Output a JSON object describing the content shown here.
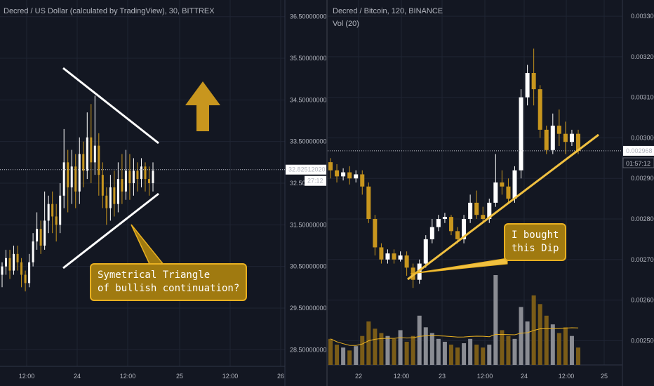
{
  "chart_data": [
    {
      "type": "candlestick",
      "title": "Decred / US Dollar (calculated by TradingView), 30, BITTREX",
      "x_ticks": [
        "12:00",
        "24",
        "12:00",
        "25",
        "12:00",
        "26"
      ],
      "y_ticks": [
        "36.50000000",
        "35.50000000",
        "34.50000000",
        "33.50000000",
        "32.50000000",
        "31.50000000",
        "30.50000000",
        "29.50000000",
        "28.50000000"
      ],
      "ylim": [
        28.1,
        36.9
      ],
      "last_price": "32.82512020",
      "countdown": "27:12",
      "grid": true,
      "candles": [
        [
          30.3,
          30.5,
          30.0,
          30.6
        ],
        [
          30.5,
          30.7,
          30.3,
          30.9
        ],
        [
          30.7,
          30.4,
          30.2,
          30.9
        ],
        [
          30.4,
          30.8,
          30.3,
          31.0
        ],
        [
          30.8,
          30.6,
          30.4,
          31.0
        ],
        [
          30.6,
          30.3,
          30.0,
          30.7
        ],
        [
          30.3,
          30.1,
          29.9,
          30.4
        ],
        [
          30.1,
          30.6,
          30.0,
          30.8
        ],
        [
          30.6,
          31.1,
          30.5,
          31.3
        ],
        [
          31.1,
          31.4,
          30.9,
          31.8
        ],
        [
          31.4,
          31.0,
          30.8,
          31.6
        ],
        [
          31.0,
          31.6,
          30.9,
          32.3
        ],
        [
          31.6,
          32.0,
          31.3,
          32.2
        ],
        [
          32.0,
          31.7,
          31.3,
          32.3
        ],
        [
          31.7,
          31.5,
          31.1,
          32.0
        ],
        [
          31.5,
          32.2,
          31.3,
          32.5
        ],
        [
          32.2,
          33.0,
          31.9,
          33.8
        ],
        [
          33.0,
          32.4,
          31.8,
          33.3
        ],
        [
          32.4,
          32.9,
          32.0,
          33.3
        ],
        [
          32.9,
          32.3,
          31.9,
          33.2
        ],
        [
          32.3,
          33.2,
          32.0,
          33.6
        ],
        [
          33.2,
          32.8,
          32.4,
          33.5
        ],
        [
          32.8,
          33.6,
          32.6,
          34.2
        ],
        [
          33.6,
          33.0,
          32.5,
          34.4
        ],
        [
          33.0,
          33.4,
          32.7,
          34.6
        ],
        [
          33.4,
          32.7,
          32.2,
          33.7
        ],
        [
          32.7,
          32.2,
          31.9,
          33.0
        ],
        [
          32.2,
          31.9,
          31.5,
          32.4
        ],
        [
          31.9,
          32.4,
          31.6,
          32.7
        ],
        [
          32.4,
          32.0,
          31.7,
          32.8
        ],
        [
          32.0,
          32.6,
          31.8,
          33.0
        ],
        [
          32.6,
          32.3,
          32.0,
          33.2
        ],
        [
          32.3,
          32.8,
          32.1,
          33.3
        ],
        [
          32.8,
          32.5,
          32.1,
          33.2
        ],
        [
          32.5,
          32.8,
          32.2,
          33.1
        ],
        [
          32.8,
          32.6,
          32.3,
          33.0
        ],
        [
          32.6,
          32.9,
          32.4,
          33.1
        ],
        [
          32.9,
          32.6,
          32.3,
          33.0
        ],
        [
          32.6,
          32.5,
          32.2,
          32.9
        ],
        [
          32.5,
          32.8,
          32.3,
          33.0
        ]
      ],
      "annotation": "Symetrical Triangle\nof bullish continuation?"
    },
    {
      "type": "candlestick",
      "title": "Decred / Bitcoin, 120, BINANCE",
      "subtitle": "Vol (20)",
      "x_ticks": [
        "22",
        "12:00",
        "23",
        "12:00",
        "24",
        "12:00",
        "25"
      ],
      "y_ticks": [
        "0.003300",
        "0.003200",
        "0.003100",
        "0.003000",
        "0.002900",
        "0.002800",
        "0.002700",
        "0.002600",
        "0.002500"
      ],
      "ylim": [
        0.00244,
        0.00334
      ],
      "last_price": "0.002968",
      "countdown": "01:57:12",
      "grid": true,
      "candles": [
        [
          0.00294,
          0.00292,
          0.0029,
          0.00295
        ],
        [
          0.00292,
          0.002905,
          0.00289,
          0.002935
        ],
        [
          0.002905,
          0.002915,
          0.002895,
          0.002925
        ],
        [
          0.002915,
          0.0029,
          0.002885,
          0.00293
        ],
        [
          0.0029,
          0.00291,
          0.00289,
          0.00292
        ],
        [
          0.00291,
          0.00288,
          0.00286,
          0.00292
        ],
        [
          0.00288,
          0.0028,
          0.00279,
          0.00289
        ],
        [
          0.0028,
          0.00273,
          0.00271,
          0.00281
        ],
        [
          0.00273,
          0.0027,
          0.00269,
          0.00274
        ],
        [
          0.0027,
          0.002715,
          0.00269,
          0.002725
        ],
        [
          0.002715,
          0.0027,
          0.00269,
          0.002725
        ],
        [
          0.0027,
          0.00271,
          0.002695,
          0.00272
        ],
        [
          0.00271,
          0.00268,
          0.00266,
          0.00272
        ],
        [
          0.00268,
          0.00265,
          0.00263,
          0.00269
        ],
        [
          0.00265,
          0.00269,
          0.00264,
          0.0027
        ],
        [
          0.00269,
          0.00275,
          0.00268,
          0.00276
        ],
        [
          0.00275,
          0.00278,
          0.00274,
          0.0028
        ],
        [
          0.00278,
          0.0028,
          0.00277,
          0.00281
        ],
        [
          0.0028,
          0.002805,
          0.00279,
          0.002815
        ],
        [
          0.002805,
          0.00277,
          0.00276,
          0.00281
        ],
        [
          0.00277,
          0.00275,
          0.00274,
          0.00278
        ],
        [
          0.00275,
          0.0028,
          0.00274,
          0.00281
        ],
        [
          0.0028,
          0.00284,
          0.00279,
          0.00286
        ],
        [
          0.00284,
          0.00281,
          0.0028,
          0.00287
        ],
        [
          0.00281,
          0.0028,
          0.00279,
          0.00283
        ],
        [
          0.0028,
          0.00284,
          0.00279,
          0.00285
        ],
        [
          0.00284,
          0.00289,
          0.00283,
          0.00296
        ],
        [
          0.00289,
          0.00288,
          0.00286,
          0.00292
        ],
        [
          0.00288,
          0.00285,
          0.00284,
          0.0029
        ],
        [
          0.00285,
          0.00292,
          0.00284,
          0.00293
        ],
        [
          0.00292,
          0.0031,
          0.0029,
          0.00312
        ],
        [
          0.0031,
          0.00316,
          0.00308,
          0.00318
        ],
        [
          0.00316,
          0.00312,
          0.00308,
          0.00322
        ],
        [
          0.00312,
          0.00302,
          0.003,
          0.00313
        ],
        [
          0.00302,
          0.00297,
          0.00296,
          0.00303
        ],
        [
          0.00297,
          0.00303,
          0.00296,
          0.00306
        ],
        [
          0.00303,
          0.00301,
          0.00298,
          0.00307
        ],
        [
          0.00301,
          0.00299,
          0.00296,
          0.00304
        ],
        [
          0.00299,
          0.00301,
          0.00298,
          0.00302
        ],
        [
          0.00301,
          0.002968,
          0.00296,
          0.00302
        ]
      ],
      "volume": [
        18,
        14,
        12,
        10,
        13,
        20,
        30,
        25,
        22,
        20,
        18,
        24,
        16,
        20,
        34,
        26,
        22,
        18,
        16,
        14,
        12,
        15,
        18,
        14,
        12,
        14,
        62,
        24,
        20,
        18,
        40,
        30,
        48,
        42,
        34,
        28,
        22,
        26,
        20,
        12
      ],
      "annotation": "I bought\nthis Dip"
    }
  ]
}
